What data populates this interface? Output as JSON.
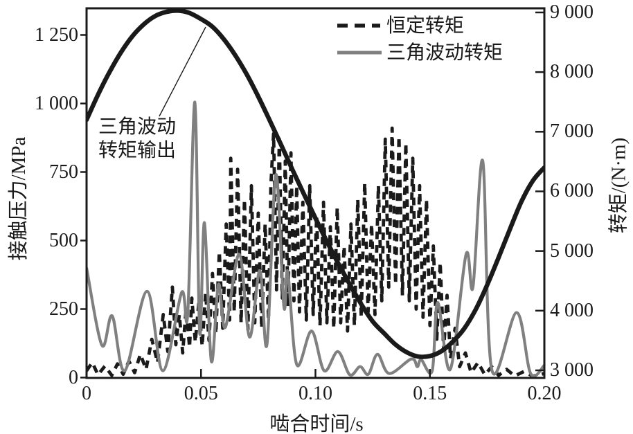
{
  "figure": {
    "xlabel": "啮合时间/s",
    "ylabel_left": "接触压力/MPa",
    "ylabel_right": "转矩/(N·m)",
    "legend": [
      "恒定转矩",
      "三角波动转矩"
    ],
    "annotation_line1": "三角波动",
    "annotation_line2": "转矩输出",
    "x_tick_labels": [
      "0",
      "0.05",
      "0.10",
      "0.15",
      "0.20"
    ],
    "y_tick_labels_left": [
      "0",
      "250",
      "500",
      "750",
      "1 000",
      "1 250"
    ],
    "y_tick_labels_right": [
      "3 000",
      "4 000",
      "5 000",
      "6 000",
      "7 000",
      "8 000",
      "9 000"
    ],
    "axis_color": "#1a1a1a"
  },
  "chart_data": {
    "type": "line",
    "title": "",
    "xlabel": "啮合时间/s",
    "ylabel_left": "接触压力/MPa",
    "ylabel_right": "转矩/(N·m)",
    "xlim": [
      0,
      0.2
    ],
    "ylim_left": [
      0,
      1348
    ],
    "ylim_right": [
      2880,
      9070
    ],
    "x_ticks": [
      0,
      0.05,
      0.1,
      0.15,
      0.2
    ],
    "y_ticks_left": [
      0,
      250,
      500,
      750,
      1000,
      1250
    ],
    "y_ticks_right": [
      3000,
      4000,
      5000,
      6000,
      7000,
      8000,
      9000
    ],
    "grid": false,
    "legend_position": "upper right inside",
    "annotation": {
      "text": "三角波动转矩输出",
      "points_to_series": "三角波动转矩输出"
    },
    "series": [
      {
        "name": "恒定转矩",
        "axis": "left",
        "style": "dashed",
        "color": "#1a1a1a",
        "width": 4.8,
        "smooth": false,
        "in_legend": true,
        "points": [
          [
            0.0,
            25
          ],
          [
            0.0025,
            55
          ],
          [
            0.005,
            10
          ],
          [
            0.008,
            42
          ],
          [
            0.011,
            8
          ],
          [
            0.0135,
            50
          ],
          [
            0.016,
            12
          ],
          [
            0.0185,
            60
          ],
          [
            0.021,
            18
          ],
          [
            0.0235,
            85
          ],
          [
            0.026,
            30
          ],
          [
            0.0285,
            140
          ],
          [
            0.031,
            55
          ],
          [
            0.0335,
            230
          ],
          [
            0.0355,
            95
          ],
          [
            0.0375,
            330
          ],
          [
            0.039,
            120
          ],
          [
            0.0405,
            230
          ],
          [
            0.042,
            90
          ],
          [
            0.0435,
            255
          ],
          [
            0.045,
            110
          ],
          [
            0.046,
            290
          ],
          [
            0.0475,
            130
          ],
          [
            0.049,
            270
          ],
          [
            0.0505,
            115
          ],
          [
            0.052,
            310
          ],
          [
            0.0535,
            135
          ],
          [
            0.055,
            380
          ],
          [
            0.0565,
            160
          ],
          [
            0.058,
            460
          ],
          [
            0.0595,
            180
          ],
          [
            0.061,
            560
          ],
          [
            0.0625,
            210
          ],
          [
            0.063,
            800
          ],
          [
            0.0645,
            240
          ],
          [
            0.066,
            760
          ],
          [
            0.0675,
            200
          ],
          [
            0.069,
            650
          ],
          [
            0.0705,
            175
          ],
          [
            0.072,
            700
          ],
          [
            0.0735,
            200
          ],
          [
            0.075,
            600
          ],
          [
            0.0765,
            180
          ],
          [
            0.078,
            560
          ],
          [
            0.0795,
            210
          ],
          [
            0.0805,
            700
          ],
          [
            0.0817,
            890
          ],
          [
            0.083,
            320
          ],
          [
            0.0842,
            870
          ],
          [
            0.0855,
            290
          ],
          [
            0.0868,
            790
          ],
          [
            0.088,
            260
          ],
          [
            0.0893,
            820
          ],
          [
            0.0906,
            280
          ],
          [
            0.0918,
            700
          ],
          [
            0.093,
            240
          ],
          [
            0.0945,
            640
          ],
          [
            0.096,
            210
          ],
          [
            0.0975,
            700
          ],
          [
            0.099,
            230
          ],
          [
            0.1005,
            590
          ],
          [
            0.102,
            190
          ],
          [
            0.1035,
            640
          ],
          [
            0.105,
            200
          ],
          [
            0.1065,
            550
          ],
          [
            0.108,
            180
          ],
          [
            0.1095,
            620
          ],
          [
            0.111,
            200
          ],
          [
            0.1125,
            480
          ],
          [
            0.114,
            170
          ],
          [
            0.1155,
            560
          ],
          [
            0.117,
            190
          ],
          [
            0.1185,
            650
          ],
          [
            0.12,
            220
          ],
          [
            0.1215,
            710
          ],
          [
            0.123,
            240
          ],
          [
            0.1245,
            560
          ],
          [
            0.126,
            230
          ],
          [
            0.1275,
            700
          ],
          [
            0.129,
            280
          ],
          [
            0.1305,
            870
          ],
          [
            0.132,
            330
          ],
          [
            0.1335,
            910
          ],
          [
            0.135,
            340
          ],
          [
            0.1365,
            880
          ],
          [
            0.138,
            300
          ],
          [
            0.1395,
            855
          ],
          [
            0.141,
            280
          ],
          [
            0.1425,
            800
          ],
          [
            0.144,
            250
          ],
          [
            0.1455,
            700
          ],
          [
            0.147,
            220
          ],
          [
            0.1485,
            650
          ],
          [
            0.15,
            190
          ],
          [
            0.1515,
            480
          ],
          [
            0.153,
            140
          ],
          [
            0.1545,
            420
          ],
          [
            0.156,
            100
          ],
          [
            0.1575,
            300
          ],
          [
            0.159,
            70
          ],
          [
            0.161,
            180
          ],
          [
            0.163,
            40
          ],
          [
            0.1655,
            90
          ],
          [
            0.168,
            18
          ],
          [
            0.171,
            55
          ],
          [
            0.174,
            10
          ],
          [
            0.177,
            40
          ],
          [
            0.18,
            8
          ],
          [
            0.1835,
            30
          ],
          [
            0.187,
            6
          ],
          [
            0.191,
            22
          ],
          [
            0.195,
            5
          ],
          [
            0.2,
            15
          ]
        ]
      },
      {
        "name": "三角波动转矩",
        "axis": "left",
        "style": "solid",
        "color": "#808080",
        "width": 4.2,
        "smooth": true,
        "in_legend": true,
        "points": [
          [
            0.0,
            400
          ],
          [
            0.0067,
            118
          ],
          [
            0.0112,
            225
          ],
          [
            0.0167,
            25
          ],
          [
            0.0264,
            315
          ],
          [
            0.0333,
            25
          ],
          [
            0.0415,
            310
          ],
          [
            0.0442,
            235
          ],
          [
            0.0473,
            1005
          ],
          [
            0.0494,
            165
          ],
          [
            0.0515,
            565
          ],
          [
            0.0545,
            60
          ],
          [
            0.0576,
            340
          ],
          [
            0.0606,
            183
          ],
          [
            0.0667,
            450
          ],
          [
            0.0712,
            148
          ],
          [
            0.0757,
            390
          ],
          [
            0.0788,
            120
          ],
          [
            0.0827,
            740
          ],
          [
            0.0862,
            259
          ],
          [
            0.0879,
            386
          ],
          [
            0.0918,
            48
          ],
          [
            0.0983,
            170
          ],
          [
            0.1038,
            25
          ],
          [
            0.1098,
            95
          ],
          [
            0.115,
            10
          ],
          [
            0.1195,
            40
          ],
          [
            0.1231,
            12
          ],
          [
            0.1271,
            85
          ],
          [
            0.1322,
            15
          ],
          [
            0.1419,
            68
          ],
          [
            0.1445,
            40
          ],
          [
            0.1462,
            65
          ],
          [
            0.151,
            25
          ],
          [
            0.1534,
            274
          ],
          [
            0.1589,
            30
          ],
          [
            0.1658,
            450
          ],
          [
            0.1688,
            330
          ],
          [
            0.1731,
            790
          ],
          [
            0.177,
            30
          ],
          [
            0.1879,
            237
          ],
          [
            0.194,
            15
          ],
          [
            0.2,
            45
          ]
        ]
      },
      {
        "name": "三角波动转矩输出",
        "axis": "right",
        "style": "solid",
        "color": "#1a1a1a",
        "width": 6.5,
        "smooth": true,
        "in_legend": false,
        "points": [
          [
            0.0,
            7200
          ],
          [
            0.005,
            7620
          ],
          [
            0.01,
            8000
          ],
          [
            0.015,
            8330
          ],
          [
            0.02,
            8600
          ],
          [
            0.025,
            8800
          ],
          [
            0.03,
            8940
          ],
          [
            0.035,
            9010
          ],
          [
            0.04,
            9030
          ],
          [
            0.045,
            8990
          ],
          [
            0.05,
            8890
          ],
          [
            0.055,
            8760
          ],
          [
            0.06,
            8550
          ],
          [
            0.065,
            8280
          ],
          [
            0.07,
            7960
          ],
          [
            0.075,
            7590
          ],
          [
            0.08,
            7190
          ],
          [
            0.085,
            6780
          ],
          [
            0.09,
            6360
          ],
          [
            0.095,
            5950
          ],
          [
            0.1,
            5550
          ],
          [
            0.105,
            5160
          ],
          [
            0.11,
            4790
          ],
          [
            0.115,
            4440
          ],
          [
            0.12,
            4110
          ],
          [
            0.125,
            3820
          ],
          [
            0.13,
            3620
          ],
          [
            0.135,
            3430
          ],
          [
            0.14,
            3300
          ],
          [
            0.145,
            3230
          ],
          [
            0.15,
            3240
          ],
          [
            0.155,
            3320
          ],
          [
            0.16,
            3480
          ],
          [
            0.165,
            3700
          ],
          [
            0.17,
            4020
          ],
          [
            0.175,
            4430
          ],
          [
            0.18,
            4890
          ],
          [
            0.185,
            5370
          ],
          [
            0.19,
            5830
          ],
          [
            0.195,
            6180
          ],
          [
            0.2,
            6400
          ]
        ]
      }
    ]
  }
}
